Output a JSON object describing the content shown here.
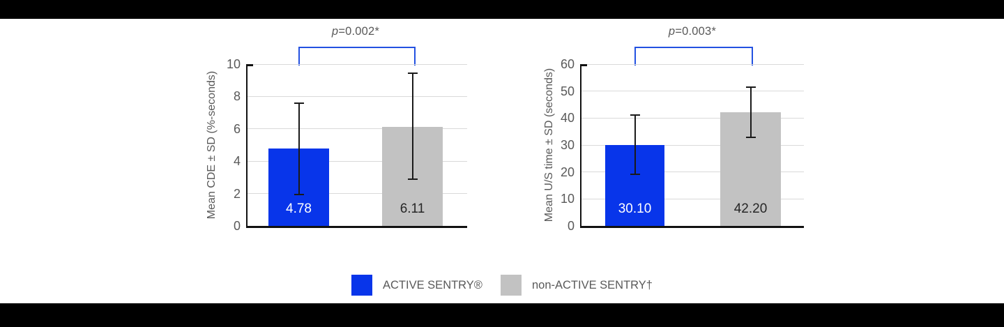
{
  "page": {
    "background": "#ffffff",
    "top_band_color": "#000000",
    "bottom_band_color": "#000000"
  },
  "colors": {
    "active_sentry_blue": "#0835ea",
    "non_active_sentry_gray": "#c2c2c2",
    "bracket": "#2351e1",
    "axis": "#111111",
    "gridline": "#d9d9d9",
    "text_gray": "#595959",
    "error_bar": "#1a1a1a"
  },
  "legend": {
    "items": [
      {
        "label": "ACTIVE SENTRY®",
        "color": "#0835ea"
      },
      {
        "label": "non-ACTIVE SENTRY†",
        "color": "#c2c2c2"
      }
    ]
  },
  "chart_data": [
    {
      "type": "bar",
      "title": "",
      "xlabel": "",
      "ylabel": "Mean CDE ± SD (%-seconds)",
      "ylim": [
        0,
        10
      ],
      "yticks": [
        0,
        2,
        4,
        6,
        8,
        10
      ],
      "grid": "horizontal",
      "legend_position": "bottom",
      "p_value": {
        "symbol": "p",
        "text": "=0.002*"
      },
      "categories": [
        "ACTIVE SENTRY®",
        "non-ACTIVE SENTRY†"
      ],
      "bars": [
        {
          "category": "ACTIVE SENTRY®",
          "value": 4.78,
          "value_label": "4.78",
          "sd_low": 1.96,
          "sd_high": 7.6,
          "color": "#0835ea",
          "label_color": "#ffffff"
        },
        {
          "category": "non-ACTIVE SENTRY†",
          "value": 6.11,
          "value_label": "6.11",
          "sd_low": 2.9,
          "sd_high": 9.45,
          "color": "#c2c2c2",
          "label_color": "#262626"
        }
      ]
    },
    {
      "type": "bar",
      "title": "",
      "xlabel": "",
      "ylabel": "Mean U/S time ± SD (seconds)",
      "ylim": [
        0,
        60
      ],
      "yticks": [
        0,
        10,
        20,
        30,
        40,
        50,
        60
      ],
      "grid": "horizontal",
      "legend_position": "bottom",
      "p_value": {
        "symbol": "p",
        "text": "=0.003*"
      },
      "categories": [
        "ACTIVE SENTRY®",
        "non-ACTIVE SENTRY†"
      ],
      "bars": [
        {
          "category": "ACTIVE SENTRY®",
          "value": 30.1,
          "value_label": "30.10",
          "sd_low": 19.1,
          "sd_high": 41.1,
          "color": "#0835ea",
          "label_color": "#ffffff"
        },
        {
          "category": "non-ACTIVE SENTRY†",
          "value": 42.2,
          "value_label": "42.20",
          "sd_low": 32.9,
          "sd_high": 51.5,
          "color": "#c2c2c2",
          "label_color": "#262626"
        }
      ]
    }
  ]
}
